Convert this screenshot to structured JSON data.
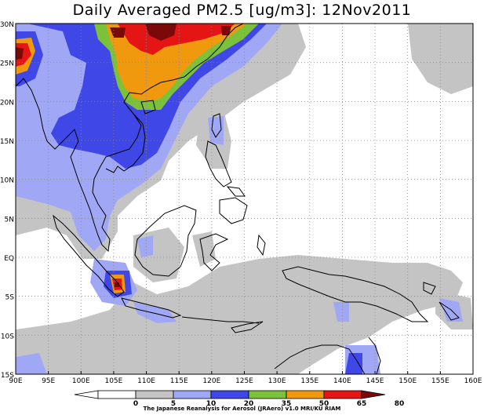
{
  "title": "Daily Averaged PM2.5 [ug/m3]: 12Nov2011",
  "credit": "The Japanese Reanalysis for Aerosol (JRAero) v1.0 MRI/KU RIAM",
  "lat_labels": [
    "30N",
    "25N",
    "20N",
    "15N",
    "10N",
    "5N",
    "EQ",
    "5S",
    "10S",
    "15S"
  ],
  "lon_labels": [
    "90E",
    "95E",
    "100E",
    "105E",
    "110E",
    "115E",
    "120E",
    "125E",
    "130E",
    "135E",
    "140E",
    "145E",
    "150E",
    "155E",
    "160E"
  ],
  "colorbar": {
    "ticks": [
      "0",
      "5",
      "10",
      "20",
      "35",
      "50",
      "65",
      "80"
    ],
    "colors": [
      "#ffffff",
      "#ffffff",
      "#c4c4c4",
      "#a0a8f5",
      "#3f48e6",
      "#7bc23a",
      "#f0990e",
      "#e61515",
      "#7a0a0a"
    ]
  },
  "colors": {
    "grey": "#c4c4c4",
    "light_blue": "#a0a8f5",
    "blue": "#3f48e6",
    "green": "#7bc23a",
    "orange": "#f0990e",
    "red": "#e61515",
    "dark_red": "#7a0a0a"
  }
}
